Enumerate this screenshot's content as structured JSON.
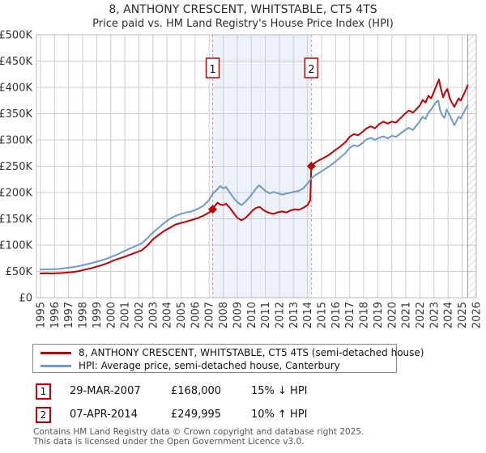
{
  "title": "8, ANTHONY CRESCENT, WHITSTABLE, CT5 4TS",
  "subtitle": "Price paid vs. HM Land Registry's House Price Index (HPI)",
  "chart_data": {
    "type": "line",
    "x_range": [
      1995,
      2026
    ],
    "y_range": [
      0,
      500000
    ],
    "x_ticks": [
      1995,
      1996,
      1997,
      1998,
      1999,
      2000,
      2001,
      2002,
      2003,
      2004,
      2005,
      2006,
      2007,
      2008,
      2009,
      2010,
      2011,
      2012,
      2013,
      2014,
      2015,
      2016,
      2017,
      2018,
      2019,
      2020,
      2021,
      2022,
      2023,
      2024,
      2025,
      2026
    ],
    "y_tick_values": [
      0,
      50000,
      100000,
      150000,
      200000,
      250000,
      300000,
      350000,
      400000,
      450000,
      500000
    ],
    "y_tick_labels": [
      "£0",
      "£50K",
      "£100K",
      "£150K",
      "£200K",
      "£250K",
      "£300K",
      "£350K",
      "£400K",
      "£450K",
      "£500K"
    ],
    "grid": true,
    "legend_position": "bottom",
    "highlight_span": [
      2007.25,
      2014.27
    ],
    "future_hatch_start": 2025.4,
    "colors": {
      "property": "#c00000",
      "hpi": "#6d99cb",
      "grid": "#cccccc",
      "border": "#b8b8b8",
      "span_fill": "#edf1fa",
      "dashed_line": "#ee8888",
      "hatch": "#bbbbbb"
    },
    "markers": [
      {
        "label": "1",
        "x": 2007.25,
        "y": 168000
      },
      {
        "label": "2",
        "x": 2014.27,
        "y": 250000
      }
    ],
    "series": [
      {
        "name": "8, ANTHONY CRESCENT, WHITSTABLE, CT5 4TS (semi-detached house)",
        "color": "#c00000",
        "points": [
          [
            1995.0,
            46000
          ],
          [
            1995.4,
            46500
          ],
          [
            1995.8,
            46000
          ],
          [
            1996.2,
            46500
          ],
          [
            1996.6,
            47000
          ],
          [
            1997.0,
            48000
          ],
          [
            1997.4,
            49000
          ],
          [
            1997.8,
            51000
          ],
          [
            1998.2,
            53500
          ],
          [
            1998.6,
            56000
          ],
          [
            1999.0,
            59000
          ],
          [
            1999.4,
            62000
          ],
          [
            1999.8,
            66000
          ],
          [
            2000.2,
            71000
          ],
          [
            2000.6,
            74500
          ],
          [
            2001.0,
            78000
          ],
          [
            2001.4,
            82000
          ],
          [
            2001.8,
            86000
          ],
          [
            2002.2,
            90000
          ],
          [
            2002.6,
            99000
          ],
          [
            2003.0,
            111000
          ],
          [
            2003.4,
            119000
          ],
          [
            2003.8,
            127000
          ],
          [
            2004.2,
            133000
          ],
          [
            2004.6,
            139000
          ],
          [
            2005.0,
            142000
          ],
          [
            2005.4,
            145000
          ],
          [
            2005.8,
            148000
          ],
          [
            2006.2,
            151500
          ],
          [
            2006.6,
            156000
          ],
          [
            2007.0,
            162000
          ],
          [
            2007.25,
            168000
          ],
          [
            2007.45,
            176000
          ],
          [
            2007.6,
            180500
          ],
          [
            2007.8,
            177000
          ],
          [
            2008.0,
            176000
          ],
          [
            2008.2,
            179000
          ],
          [
            2008.5,
            170000
          ],
          [
            2008.8,
            159000
          ],
          [
            2009.0,
            152000
          ],
          [
            2009.3,
            147000
          ],
          [
            2009.6,
            152000
          ],
          [
            2009.9,
            160000
          ],
          [
            2010.1,
            166000
          ],
          [
            2010.35,
            171000
          ],
          [
            2010.6,
            172500
          ],
          [
            2010.8,
            168000
          ],
          [
            2011.0,
            164500
          ],
          [
            2011.3,
            161000
          ],
          [
            2011.6,
            159500
          ],
          [
            2011.9,
            162500
          ],
          [
            2012.2,
            164000
          ],
          [
            2012.5,
            162000
          ],
          [
            2012.8,
            166000
          ],
          [
            2013.1,
            168000
          ],
          [
            2013.4,
            167000
          ],
          [
            2013.7,
            171000
          ],
          [
            2014.0,
            176000
          ],
          [
            2014.2,
            186000
          ],
          [
            2014.27,
            250000
          ],
          [
            2014.5,
            256000
          ],
          [
            2014.8,
            261000
          ],
          [
            2015.1,
            265000
          ],
          [
            2015.5,
            271000
          ],
          [
            2015.9,
            279000
          ],
          [
            2016.3,
            287000
          ],
          [
            2016.7,
            296000
          ],
          [
            2017.0,
            306000
          ],
          [
            2017.3,
            311000
          ],
          [
            2017.6,
            309000
          ],
          [
            2017.9,
            315000
          ],
          [
            2018.2,
            322000
          ],
          [
            2018.5,
            326000
          ],
          [
            2018.8,
            322000
          ],
          [
            2019.1,
            330000
          ],
          [
            2019.4,
            335000
          ],
          [
            2019.7,
            331000
          ],
          [
            2020.0,
            335000
          ],
          [
            2020.3,
            333000
          ],
          [
            2020.6,
            341000
          ],
          [
            2020.9,
            349000
          ],
          [
            2021.2,
            356000
          ],
          [
            2021.5,
            352000
          ],
          [
            2021.8,
            360000
          ],
          [
            2022.0,
            366000
          ],
          [
            2022.2,
            376000
          ],
          [
            2022.4,
            371000
          ],
          [
            2022.6,
            384000
          ],
          [
            2022.8,
            379000
          ],
          [
            2023.0,
            392000
          ],
          [
            2023.15,
            402000
          ],
          [
            2023.35,
            415000
          ],
          [
            2023.5,
            396000
          ],
          [
            2023.65,
            381000
          ],
          [
            2023.8,
            391000
          ],
          [
            2023.95,
            397000
          ],
          [
            2024.1,
            381000
          ],
          [
            2024.25,
            372000
          ],
          [
            2024.45,
            363000
          ],
          [
            2024.6,
            371000
          ],
          [
            2024.75,
            379000
          ],
          [
            2024.9,
            375000
          ],
          [
            2025.05,
            383000
          ],
          [
            2025.2,
            391000
          ],
          [
            2025.4,
            404000
          ]
        ]
      },
      {
        "name": "HPI: Average price, semi-detached house, Canterbury",
        "color": "#6d99cb",
        "points": [
          [
            1995.0,
            53500
          ],
          [
            1995.4,
            54000
          ],
          [
            1995.8,
            54000
          ],
          [
            1996.2,
            54500
          ],
          [
            1996.6,
            55500
          ],
          [
            1997.0,
            57000
          ],
          [
            1997.4,
            58500
          ],
          [
            1997.8,
            60500
          ],
          [
            1998.2,
            63000
          ],
          [
            1998.6,
            65500
          ],
          [
            1999.0,
            68500
          ],
          [
            1999.4,
            71500
          ],
          [
            1999.8,
            75000
          ],
          [
            2000.2,
            79500
          ],
          [
            2000.6,
            84000
          ],
          [
            2001.0,
            89000
          ],
          [
            2001.4,
            94000
          ],
          [
            2001.8,
            98500
          ],
          [
            2002.2,
            103500
          ],
          [
            2002.6,
            113000
          ],
          [
            2003.0,
            124000
          ],
          [
            2003.4,
            133000
          ],
          [
            2003.8,
            142000
          ],
          [
            2004.2,
            150000
          ],
          [
            2004.6,
            155500
          ],
          [
            2005.0,
            159500
          ],
          [
            2005.4,
            162000
          ],
          [
            2005.8,
            164500
          ],
          [
            2006.2,
            169000
          ],
          [
            2006.6,
            175000
          ],
          [
            2007.0,
            186000
          ],
          [
            2007.25,
            197500
          ],
          [
            2007.5,
            204000
          ],
          [
            2007.8,
            212500
          ],
          [
            2008.0,
            208000
          ],
          [
            2008.2,
            210500
          ],
          [
            2008.5,
            199000
          ],
          [
            2008.8,
            188000
          ],
          [
            2009.0,
            182000
          ],
          [
            2009.3,
            176000
          ],
          [
            2009.6,
            183000
          ],
          [
            2009.9,
            192000
          ],
          [
            2010.1,
            199000
          ],
          [
            2010.35,
            208000
          ],
          [
            2010.55,
            213500
          ],
          [
            2010.8,
            208000
          ],
          [
            2011.0,
            203000
          ],
          [
            2011.3,
            198500
          ],
          [
            2011.6,
            201000
          ],
          [
            2011.9,
            198500
          ],
          [
            2012.2,
            196000
          ],
          [
            2012.5,
            198000
          ],
          [
            2012.8,
            200000
          ],
          [
            2013.1,
            201500
          ],
          [
            2013.4,
            203500
          ],
          [
            2013.7,
            208000
          ],
          [
            2014.0,
            217000
          ],
          [
            2014.27,
            227000
          ],
          [
            2014.5,
            232000
          ],
          [
            2014.8,
            237000
          ],
          [
            2015.1,
            242000
          ],
          [
            2015.5,
            249000
          ],
          [
            2015.9,
            257000
          ],
          [
            2016.3,
            266000
          ],
          [
            2016.7,
            275000
          ],
          [
            2017.0,
            285000
          ],
          [
            2017.3,
            290000
          ],
          [
            2017.6,
            288000
          ],
          [
            2017.9,
            294000
          ],
          [
            2018.2,
            301000
          ],
          [
            2018.5,
            304000
          ],
          [
            2018.8,
            300000
          ],
          [
            2019.1,
            304000
          ],
          [
            2019.4,
            307000
          ],
          [
            2019.7,
            303000
          ],
          [
            2020.0,
            308000
          ],
          [
            2020.3,
            306000
          ],
          [
            2020.6,
            312000
          ],
          [
            2020.9,
            318000
          ],
          [
            2021.2,
            323000
          ],
          [
            2021.5,
            319000
          ],
          [
            2021.8,
            329000
          ],
          [
            2022.0,
            336000
          ],
          [
            2022.2,
            344000
          ],
          [
            2022.4,
            340000
          ],
          [
            2022.6,
            352000
          ],
          [
            2022.8,
            358000
          ],
          [
            2023.0,
            366000
          ],
          [
            2023.15,
            372000
          ],
          [
            2023.3,
            375000
          ],
          [
            2023.45,
            356000
          ],
          [
            2023.6,
            346000
          ],
          [
            2023.75,
            342000
          ],
          [
            2023.9,
            358000
          ],
          [
            2024.05,
            351000
          ],
          [
            2024.2,
            342000
          ],
          [
            2024.45,
            328000
          ],
          [
            2024.6,
            336000
          ],
          [
            2024.75,
            344000
          ],
          [
            2024.9,
            341000
          ],
          [
            2025.05,
            349000
          ],
          [
            2025.2,
            357000
          ],
          [
            2025.4,
            366000
          ]
        ]
      }
    ]
  },
  "legend": {
    "items": [
      {
        "label": "8, ANTHONY CRESCENT, WHITSTABLE, CT5 4TS (semi-detached house)",
        "color": "#c00000"
      },
      {
        "label": "HPI: Average price, semi-detached house, Canterbury",
        "color": "#6d99cb"
      }
    ]
  },
  "transactions": [
    {
      "num": "1",
      "date": "29-MAR-2007",
      "price": "£168,000",
      "hpi_delta": "15% ↓ HPI"
    },
    {
      "num": "2",
      "date": "07-APR-2014",
      "price": "£249,995",
      "hpi_delta": "10% ↑ HPI"
    }
  ],
  "footer": {
    "line1": "Contains HM Land Registry data © Crown copyright and database right 2025.",
    "line2": "This data is licensed under the Open Government Licence v3.0."
  }
}
